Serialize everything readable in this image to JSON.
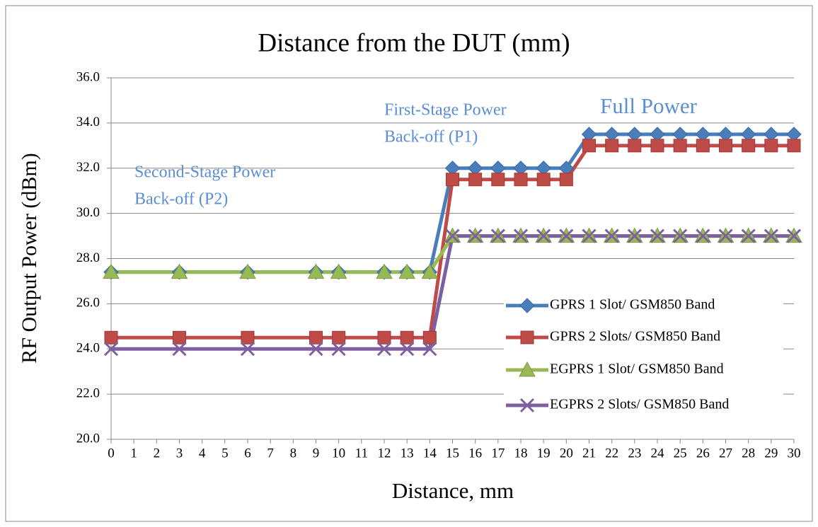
{
  "chart_data": {
    "type": "line",
    "title": "Distance from the DUT (mm)",
    "x_label": "Distance, mm",
    "y_label": "RF Output Power (dBm)",
    "x": [
      0,
      3,
      6,
      9,
      10,
      12,
      13,
      14,
      15,
      16,
      17,
      18,
      19,
      20,
      21,
      22,
      23,
      24,
      25,
      26,
      27,
      28,
      29,
      30
    ],
    "series": [
      {
        "name": "GPRS 1 Slot/ GSM850 Band",
        "color": "#4a7ebb",
        "marker": "diamond",
        "values": [
          27.4,
          27.4,
          27.4,
          27.4,
          27.4,
          27.4,
          27.4,
          27.4,
          32,
          32,
          32,
          32,
          32,
          32,
          33.5,
          33.5,
          33.5,
          33.5,
          33.5,
          33.5,
          33.5,
          33.5,
          33.5,
          33.5
        ]
      },
      {
        "name": "GPRS 2 Slots/ GSM850 Band",
        "color": "#be4b48",
        "marker": "square",
        "values": [
          24.5,
          24.5,
          24.5,
          24.5,
          24.5,
          24.5,
          24.5,
          24.5,
          31.5,
          31.5,
          31.5,
          31.5,
          31.5,
          31.5,
          33,
          33,
          33,
          33,
          33,
          33,
          33,
          33,
          33,
          33
        ]
      },
      {
        "name": "EGPRS 1 Slot/ GSM850 Band",
        "color": "#98b954",
        "marker": "triangle",
        "values": [
          27.4,
          27.4,
          27.4,
          27.4,
          27.4,
          27.4,
          27.4,
          27.4,
          29,
          29,
          29,
          29,
          29,
          29,
          29,
          29,
          29,
          29,
          29,
          29,
          29,
          29,
          29,
          29
        ]
      },
      {
        "name": "EGPRS 2 Slots/ GSM850 Band",
        "color": "#7d60a0",
        "marker": "x",
        "values": [
          24,
          24,
          24,
          24,
          24,
          24,
          24,
          24,
          29,
          29,
          29,
          29,
          29,
          29,
          29,
          29,
          29,
          29,
          29,
          29,
          29,
          29,
          29,
          29
        ]
      }
    ],
    "xlim": [
      0,
      30
    ],
    "xticks": [
      0,
      1,
      2,
      3,
      4,
      5,
      6,
      7,
      8,
      9,
      10,
      11,
      12,
      13,
      14,
      15,
      16,
      17,
      18,
      19,
      20,
      21,
      22,
      23,
      24,
      25,
      26,
      27,
      28,
      29,
      30
    ],
    "ylim": [
      20,
      36
    ],
    "yticks": [
      {
        "value": 20,
        "label": "20.0"
      },
      {
        "value": 22,
        "label": "22.0"
      },
      {
        "value": 24,
        "label": "24.0"
      },
      {
        "value": 26,
        "label": "26.0"
      },
      {
        "value": 28,
        "label": "28.0"
      },
      {
        "value": 30,
        "label": "30.0"
      },
      {
        "value": 32,
        "label": "32.0"
      },
      {
        "value": 34,
        "label": "34.0"
      },
      {
        "value": 36,
        "label": "36.0"
      }
    ],
    "grid": true,
    "legend": "right",
    "annotations": [
      [
        "Second-Stage Power",
        "Back-off (P2)"
      ],
      [
        "First-Stage Power",
        "Back-off (P1)"
      ],
      [
        "Full Power"
      ]
    ]
  }
}
